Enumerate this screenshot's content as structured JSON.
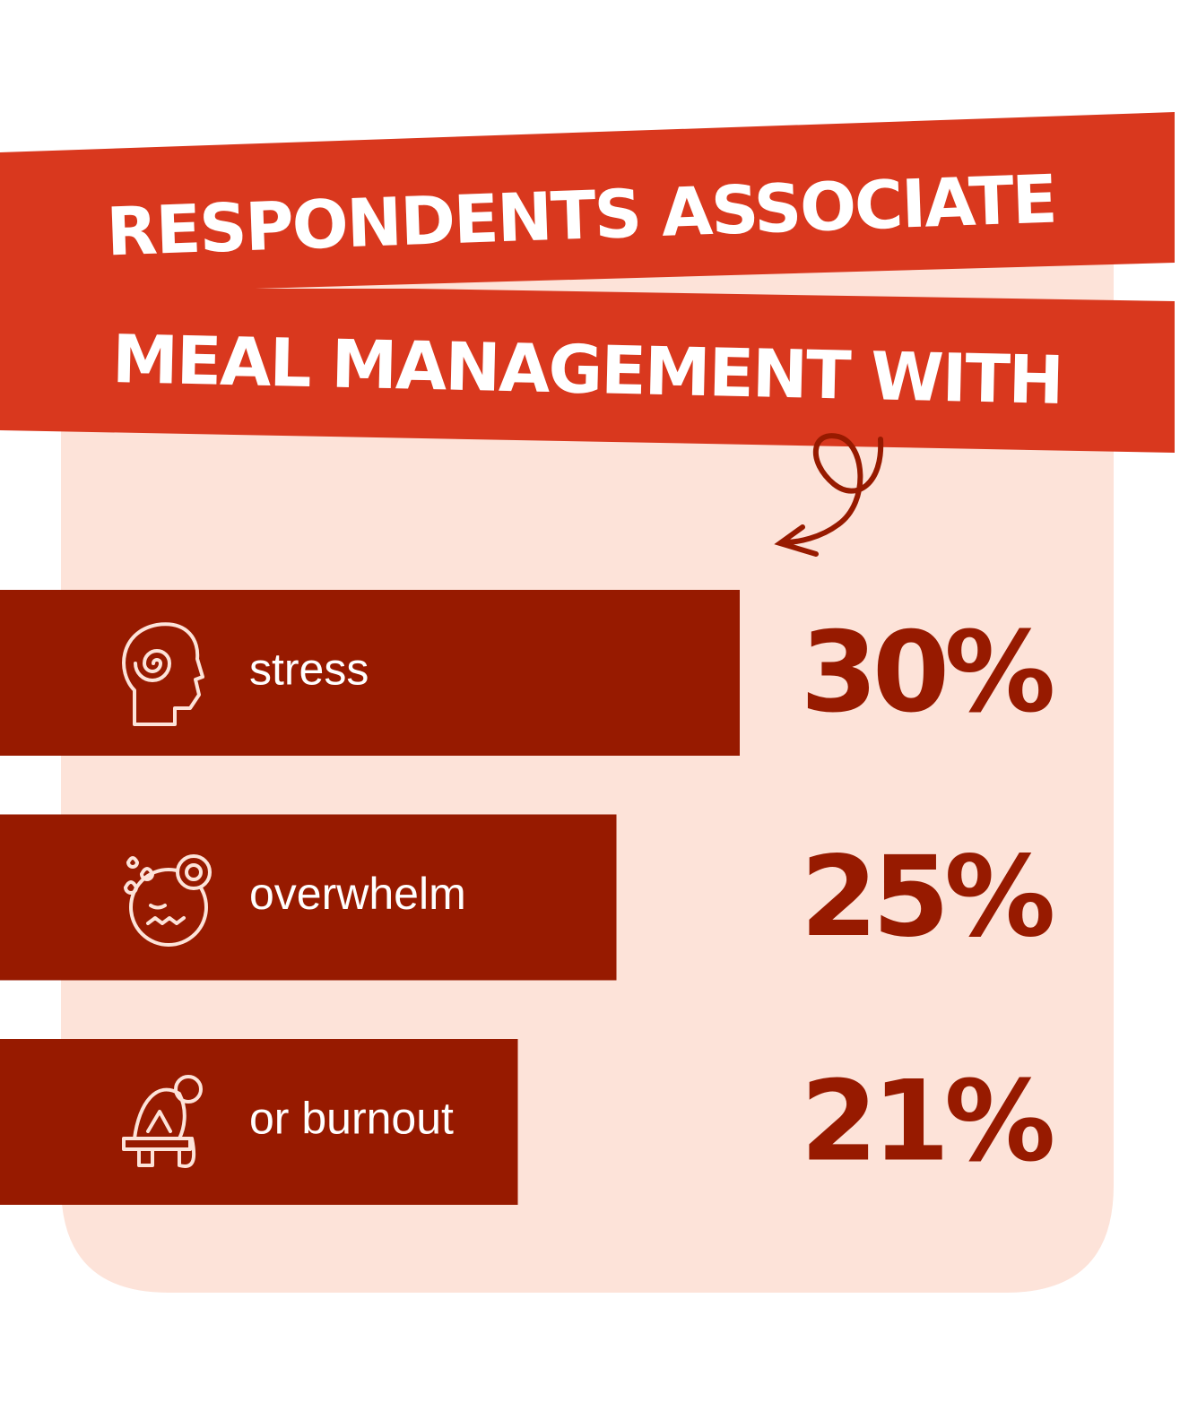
{
  "chart_data": {
    "type": "bar",
    "orientation": "horizontal",
    "title": [
      "RESPONDENTS ASSOCIATE",
      "MEAL MANAGEMENT WITH"
    ],
    "categories": [
      "stress",
      "overwhelm",
      "or burnout"
    ],
    "values": [
      30,
      25,
      21
    ],
    "value_labels": [
      "30%",
      "25%",
      "21%"
    ],
    "color": "#971a00"
  }
}
